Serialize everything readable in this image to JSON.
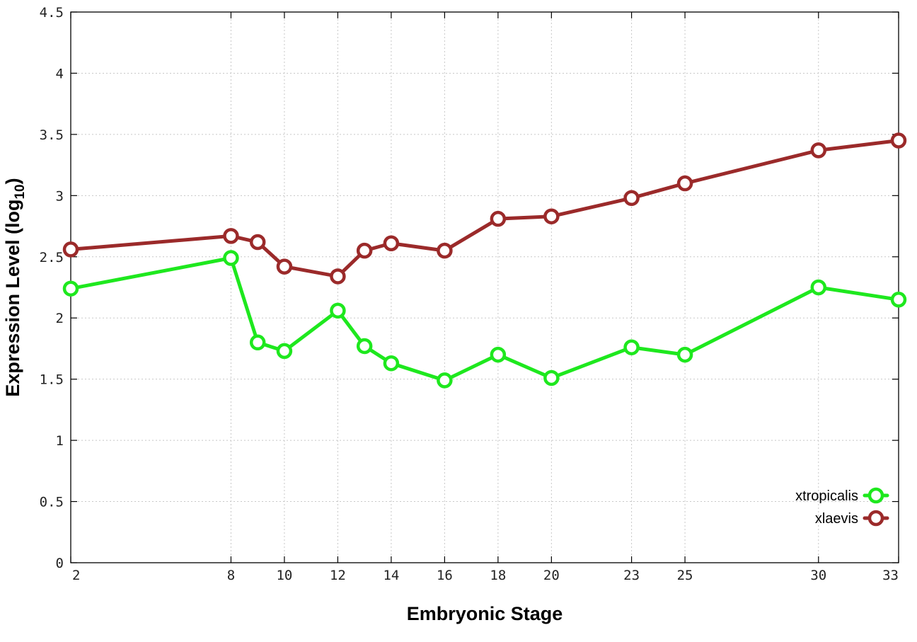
{
  "chart_data": {
    "type": "line",
    "xlabel": "Embryonic Stage",
    "ylabel_main": "Expression Level (log",
    "ylabel_sub": "10",
    "ylabel_close": ")",
    "xlim": [
      2,
      33
    ],
    "ylim": [
      0,
      4.5
    ],
    "x_ticks": [
      2,
      8,
      10,
      12,
      14,
      16,
      18,
      20,
      23,
      25,
      30,
      33
    ],
    "x_tick_labels": [
      "2",
      "8",
      "10",
      "12",
      "14",
      "16",
      "18",
      "20",
      "23",
      "25",
      "30",
      "33"
    ],
    "y_ticks": [
      0,
      0.5,
      1,
      1.5,
      2,
      2.5,
      3,
      3.5,
      4,
      4.5
    ],
    "y_tick_labels": [
      "0",
      "0.5",
      "1",
      "1.5",
      "2",
      "2.5",
      "3",
      "3.5",
      "4",
      "4.5"
    ],
    "grid": true,
    "legend_position": "bottom-right",
    "x": [
      2,
      8,
      9,
      10,
      12,
      13,
      14,
      16,
      18,
      20,
      23,
      25,
      30,
      33
    ],
    "series": [
      {
        "name": "xtropicalis",
        "color": "#1ee81e",
        "values": [
          2.24,
          2.49,
          1.8,
          1.73,
          2.06,
          1.77,
          1.63,
          1.49,
          1.7,
          1.51,
          1.76,
          1.7,
          2.25,
          2.15
        ]
      },
      {
        "name": "xlaevis",
        "color": "#9b2a2a",
        "values": [
          2.56,
          2.67,
          2.62,
          2.42,
          2.34,
          2.55,
          2.61,
          2.55,
          2.81,
          2.83,
          2.98,
          3.1,
          3.37,
          3.45
        ]
      }
    ]
  }
}
